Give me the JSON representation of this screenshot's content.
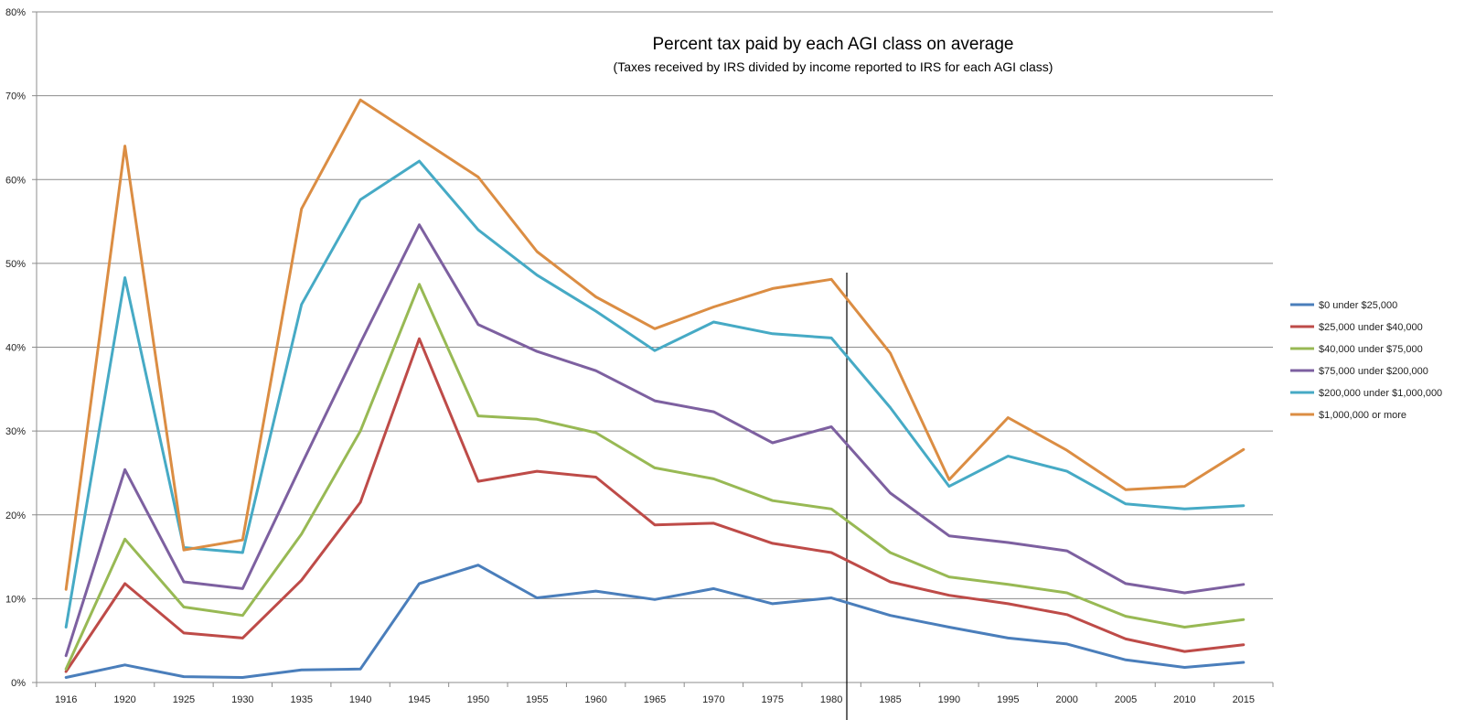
{
  "chart_data": {
    "type": "line",
    "title": "Percent tax paid by each AGI class on average",
    "subtitle": "(Taxes received by IRS divided by income reported to IRS for each AGI class)",
    "xlabel": "",
    "ylabel": "",
    "ylim": [
      0,
      80
    ],
    "ytick_labels": [
      "0%",
      "10%",
      "20%",
      "30%",
      "40%",
      "50%",
      "60%",
      "70%",
      "80%"
    ],
    "grid": "horizontal",
    "legend_position": "right",
    "categories": [
      "1916",
      "1920",
      "1925",
      "1930",
      "1935",
      "1940",
      "1945",
      "1950",
      "1955",
      "1960",
      "1965",
      "1970",
      "1975",
      "1980",
      "1985",
      "1990",
      "1995",
      "2000",
      "2005",
      "2010",
      "2015"
    ],
    "series": [
      {
        "name": "$0 under $25,000",
        "color": "#4A7EBB",
        "values": [
          0.6,
          2.1,
          0.7,
          0.6,
          1.5,
          1.6,
          11.8,
          14.0,
          10.1,
          10.9,
          9.9,
          11.2,
          9.4,
          10.1,
          8.0,
          6.6,
          5.3,
          4.6,
          2.7,
          1.8,
          2.4
        ]
      },
      {
        "name": "$25,000 under $40,000",
        "color": "#BE4B48",
        "values": [
          1.3,
          11.8,
          5.9,
          5.3,
          12.2,
          21.5,
          41.0,
          24.0,
          25.2,
          24.5,
          18.8,
          19.0,
          16.6,
          15.5,
          12.0,
          10.4,
          9.4,
          8.1,
          5.2,
          3.7,
          4.5
        ]
      },
      {
        "name": "$40,000 under $75,000",
        "color": "#98B954",
        "values": [
          1.6,
          17.1,
          9.0,
          8.0,
          17.7,
          30.0,
          47.5,
          31.8,
          31.4,
          29.8,
          25.6,
          24.3,
          21.7,
          20.7,
          15.5,
          12.6,
          11.7,
          10.7,
          7.9,
          6.6,
          7.5
        ]
      },
      {
        "name": "$75,000 under $200,000",
        "color": "#7D60A0",
        "values": [
          3.2,
          25.4,
          12.0,
          11.2,
          26.0,
          40.5,
          54.6,
          42.7,
          39.5,
          37.2,
          33.6,
          32.3,
          28.6,
          30.5,
          22.6,
          17.5,
          16.7,
          15.7,
          11.8,
          10.7,
          11.7
        ]
      },
      {
        "name": "$200,000 under $1,000,000",
        "color": "#46AAC5",
        "values": [
          6.6,
          48.3,
          16.1,
          15.5,
          45.1,
          57.6,
          62.2,
          54.0,
          48.6,
          44.3,
          39.6,
          43.0,
          41.6,
          41.1,
          32.8,
          23.4,
          27.0,
          25.2,
          21.3,
          20.7,
          21.1
        ]
      },
      {
        "name": "$1,000,000 or more",
        "color": "#DB8D43",
        "values": [
          11.1,
          64.0,
          15.8,
          17.0,
          56.5,
          69.5,
          64.9,
          60.3,
          51.4,
          46.0,
          42.2,
          44.8,
          47.0,
          48.1,
          39.3,
          24.2,
          31.6,
          27.7,
          23.0,
          23.4,
          27.8
        ]
      }
    ]
  }
}
